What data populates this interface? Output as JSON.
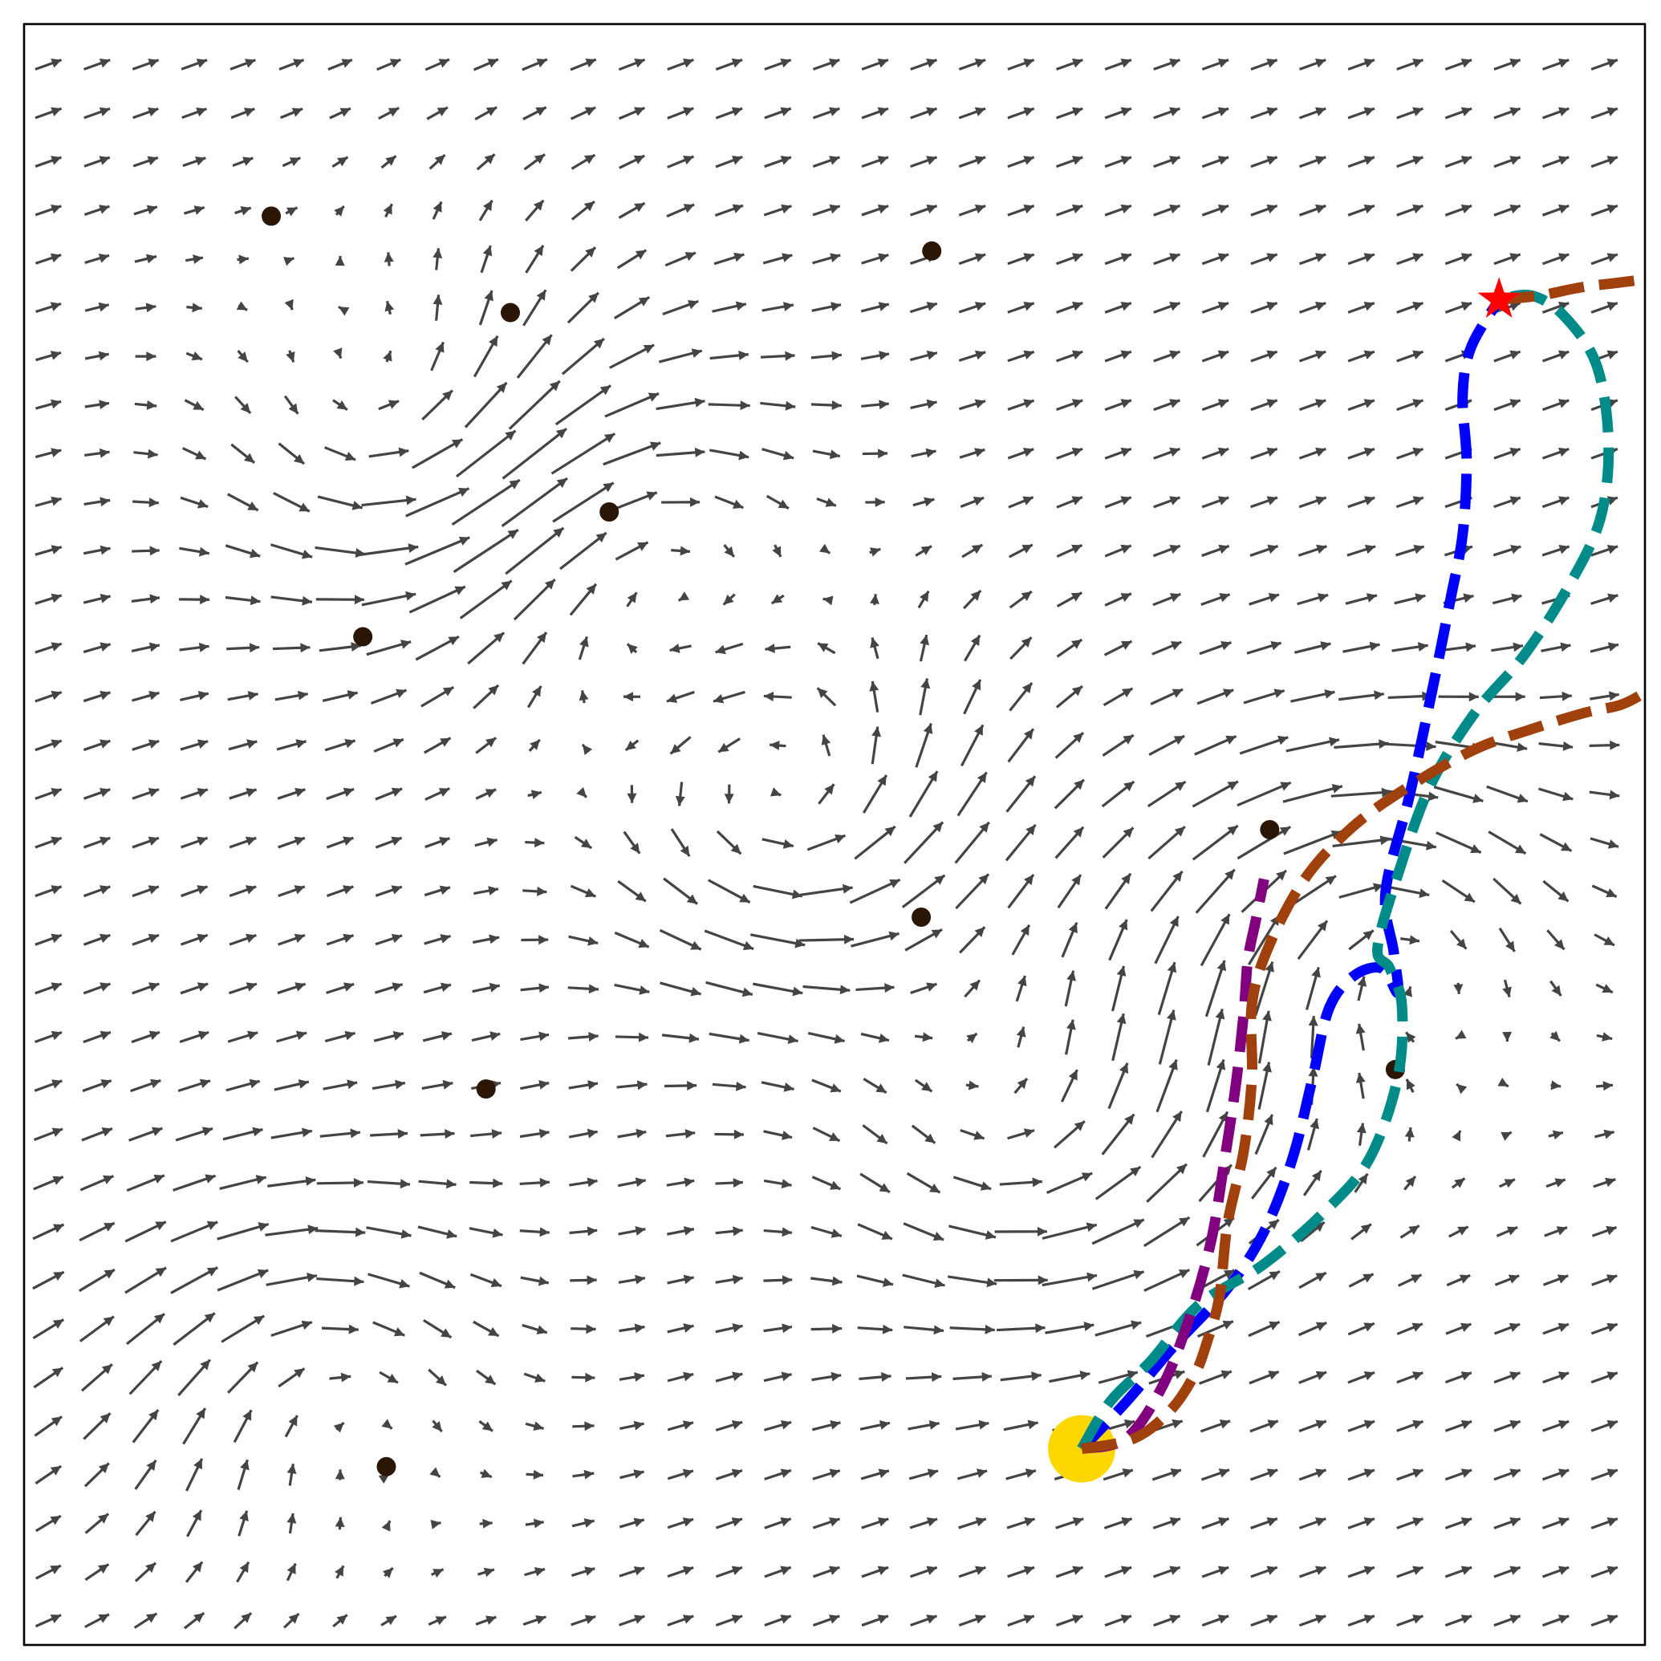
{
  "chart_data": {
    "type": "quiver",
    "title": "",
    "xlabel": "",
    "ylabel": "",
    "xlim": [
      0,
      20
    ],
    "ylim": [
      0,
      20
    ],
    "axes_ticks": false,
    "grid": false,
    "legend": "none",
    "vector_field": {
      "grid_step": 0.6,
      "base_vector": [
        0.78,
        0.28
      ],
      "color": "#444444",
      "vortices": [
        {
          "x": 4.8,
          "y": 15.0,
          "strength": 1.2
        },
        {
          "x": 7.5,
          "y": 13.4,
          "strength": -1.0
        },
        {
          "x": 9.6,
          "y": 10.3,
          "strength": 1.4
        },
        {
          "x": 12.4,
          "y": 6.3,
          "strength": 1.1
        },
        {
          "x": 16.7,
          "y": 8.8,
          "strength": -1.3
        },
        {
          "x": 3.6,
          "y": 3.4,
          "strength": -1.0
        }
      ]
    },
    "obstacles": {
      "color": "#2b1606",
      "points": [
        {
          "x": 3.05,
          "y": 17.63
        },
        {
          "x": 11.2,
          "y": 17.2
        },
        {
          "x": 6.0,
          "y": 16.44
        },
        {
          "x": 7.22,
          "y": 13.98
        },
        {
          "x": 4.18,
          "y": 12.44
        },
        {
          "x": 15.37,
          "y": 10.06
        },
        {
          "x": 11.07,
          "y": 8.98
        },
        {
          "x": 5.7,
          "y": 6.86
        },
        {
          "x": 16.92,
          "y": 7.1
        },
        {
          "x": 4.47,
          "y": 2.2
        }
      ]
    },
    "start": {
      "x": 13.05,
      "y": 2.42,
      "color": "#ffd700"
    },
    "goal": {
      "x": 18.2,
      "y": 16.6,
      "color": "#ff0000"
    },
    "series": [
      {
        "color": "#0000ff",
        "points": [
          [
            13.05,
            2.42
          ],
          [
            13.6,
            3.0
          ],
          [
            14.2,
            3.7
          ],
          [
            14.85,
            4.4
          ],
          [
            15.3,
            5.1
          ],
          [
            15.65,
            6.0
          ],
          [
            15.9,
            7.0
          ],
          [
            16.1,
            7.85
          ],
          [
            16.4,
            8.25
          ],
          [
            16.75,
            8.35
          ],
          [
            16.95,
            8.05
          ],
          [
            16.9,
            8.55
          ],
          [
            16.8,
            9.3
          ],
          [
            17.1,
            10.5
          ],
          [
            17.4,
            11.9
          ],
          [
            17.6,
            12.9
          ],
          [
            17.75,
            13.7
          ],
          [
            17.8,
            14.6
          ],
          [
            17.75,
            15.4
          ],
          [
            17.85,
            16.0
          ],
          [
            18.2,
            16.6
          ]
        ]
      },
      {
        "color": "#008b8b",
        "points": [
          [
            13.05,
            2.42
          ],
          [
            13.4,
            3.0
          ],
          [
            13.9,
            3.5
          ],
          [
            14.5,
            4.2
          ],
          [
            15.3,
            4.7
          ],
          [
            16.05,
            5.35
          ],
          [
            16.6,
            6.0
          ],
          [
            16.95,
            7.0
          ],
          [
            17.0,
            7.9
          ],
          [
            16.85,
            8.35
          ],
          [
            16.7,
            8.6
          ],
          [
            16.95,
            9.5
          ],
          [
            17.35,
            10.6
          ],
          [
            17.9,
            11.5
          ],
          [
            18.5,
            12.2
          ],
          [
            19.05,
            13.05
          ],
          [
            19.45,
            13.9
          ],
          [
            19.55,
            14.85
          ],
          [
            19.4,
            15.8
          ],
          [
            19.0,
            16.4
          ],
          [
            18.6,
            16.65
          ],
          [
            18.2,
            16.6
          ]
        ]
      },
      {
        "color": "#800080",
        "points": [
          [
            13.05,
            2.42
          ],
          [
            13.6,
            2.55
          ],
          [
            14.05,
            3.2
          ],
          [
            14.4,
            4.1
          ],
          [
            14.65,
            5.0
          ],
          [
            14.8,
            5.9
          ],
          [
            14.95,
            6.9
          ],
          [
            15.05,
            7.8
          ],
          [
            15.1,
            8.45
          ],
          [
            15.2,
            8.95
          ],
          [
            15.3,
            9.45
          ]
        ]
      },
      {
        "color": "#a0410d",
        "points": [
          [
            13.05,
            2.42
          ],
          [
            13.7,
            2.55
          ],
          [
            14.15,
            2.9
          ],
          [
            14.45,
            3.35
          ],
          [
            14.6,
            3.75
          ],
          [
            14.75,
            4.3
          ],
          [
            14.85,
            5.2
          ],
          [
            15.05,
            6.1
          ],
          [
            15.15,
            7.0
          ],
          [
            15.15,
            7.9
          ],
          [
            15.35,
            8.6
          ],
          [
            15.8,
            9.45
          ],
          [
            16.4,
            10.1
          ],
          [
            17.1,
            10.6
          ],
          [
            17.9,
            11.05
          ],
          [
            18.6,
            11.3
          ],
          [
            19.25,
            11.5
          ],
          [
            19.7,
            11.6
          ],
          [
            20.0,
            11.75
          ]
        ]
      },
      {
        "color": "#a0410d",
        "points": [
          [
            18.2,
            16.6
          ],
          [
            18.7,
            16.65
          ],
          [
            19.2,
            16.75
          ],
          [
            19.6,
            16.8
          ],
          [
            20.0,
            16.85
          ]
        ]
      }
    ]
  }
}
